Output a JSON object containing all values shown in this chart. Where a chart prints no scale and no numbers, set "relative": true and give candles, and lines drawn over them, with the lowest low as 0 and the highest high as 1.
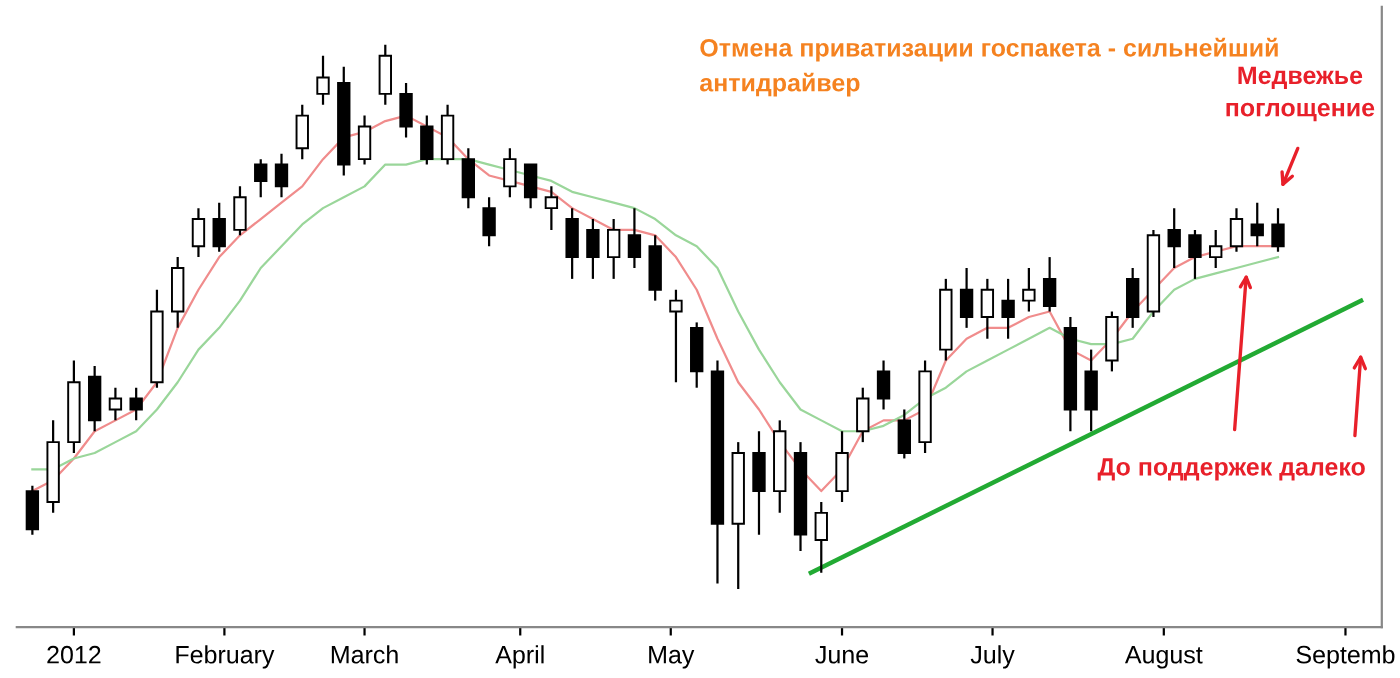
{
  "chart_data": {
    "type": "candlestick",
    "relative": true,
    "grid": false,
    "x": [
      "2012-01-03",
      "2012-01-07",
      "2012-01-11",
      "2012-01-15",
      "2012-01-19",
      "2012-01-23",
      "2012-01-27",
      "2012-01-31",
      "2012-02-04",
      "2012-02-08",
      "2012-02-12",
      "2012-02-16",
      "2012-02-20",
      "2012-02-24",
      "2012-02-28",
      "2012-03-03",
      "2012-03-07",
      "2012-03-11",
      "2012-03-15",
      "2012-03-19",
      "2012-03-23",
      "2012-03-27",
      "2012-03-31",
      "2012-04-04",
      "2012-04-08",
      "2012-04-12",
      "2012-04-16",
      "2012-04-20",
      "2012-04-24",
      "2012-04-28",
      "2012-05-02",
      "2012-05-06",
      "2012-05-10",
      "2012-05-14",
      "2012-05-18",
      "2012-05-22",
      "2012-05-26",
      "2012-05-30",
      "2012-06-03",
      "2012-06-07",
      "2012-06-11",
      "2012-06-15",
      "2012-06-19",
      "2012-06-23",
      "2012-06-27",
      "2012-07-01",
      "2012-07-05",
      "2012-07-09",
      "2012-07-13",
      "2012-07-17",
      "2012-07-21",
      "2012-07-25",
      "2012-07-29",
      "2012-08-02",
      "2012-08-06",
      "2012-08-10",
      "2012-08-14",
      "2012-08-18",
      "2012-08-22",
      "2012-08-26",
      "2012-08-30"
    ],
    "ohlc": [
      [
        0.18,
        0.19,
        0.1,
        0.11
      ],
      [
        0.16,
        0.31,
        0.14,
        0.27
      ],
      [
        0.27,
        0.42,
        0.25,
        0.38
      ],
      [
        0.39,
        0.41,
        0.29,
        0.31
      ],
      [
        0.33,
        0.37,
        0.31,
        0.35
      ],
      [
        0.35,
        0.37,
        0.31,
        0.33
      ],
      [
        0.38,
        0.55,
        0.37,
        0.51
      ],
      [
        0.51,
        0.61,
        0.48,
        0.59
      ],
      [
        0.63,
        0.7,
        0.61,
        0.68
      ],
      [
        0.68,
        0.71,
        0.62,
        0.63
      ],
      [
        0.66,
        0.74,
        0.65,
        0.72
      ],
      [
        0.78,
        0.79,
        0.72,
        0.75
      ],
      [
        0.78,
        0.8,
        0.72,
        0.74
      ],
      [
        0.81,
        0.89,
        0.79,
        0.87
      ],
      [
        0.91,
        0.98,
        0.89,
        0.94
      ],
      [
        0.93,
        0.96,
        0.76,
        0.78
      ],
      [
        0.79,
        0.87,
        0.78,
        0.85
      ],
      [
        0.91,
        1.0,
        0.89,
        0.98
      ],
      [
        0.91,
        0.93,
        0.83,
        0.85
      ],
      [
        0.85,
        0.87,
        0.78,
        0.79
      ],
      [
        0.79,
        0.89,
        0.78,
        0.87
      ],
      [
        0.79,
        0.81,
        0.7,
        0.72
      ],
      [
        0.7,
        0.72,
        0.63,
        0.65
      ],
      [
        0.74,
        0.81,
        0.72,
        0.79
      ],
      [
        0.78,
        0.78,
        0.7,
        0.72
      ],
      [
        0.7,
        0.74,
        0.66,
        0.72
      ],
      [
        0.68,
        0.7,
        0.57,
        0.61
      ],
      [
        0.66,
        0.68,
        0.57,
        0.61
      ],
      [
        0.61,
        0.68,
        0.57,
        0.66
      ],
      [
        0.65,
        0.7,
        0.59,
        0.61
      ],
      [
        0.63,
        0.65,
        0.53,
        0.55
      ],
      [
        0.51,
        0.55,
        0.38,
        0.53
      ],
      [
        0.48,
        0.49,
        0.37,
        0.4
      ],
      [
        0.4,
        0.42,
        0.01,
        0.12
      ],
      [
        0.12,
        0.27,
        0.0,
        0.25
      ],
      [
        0.25,
        0.29,
        0.1,
        0.18
      ],
      [
        0.18,
        0.31,
        0.14,
        0.29
      ],
      [
        0.25,
        0.27,
        0.07,
        0.1
      ],
      [
        0.09,
        0.16,
        0.03,
        0.14
      ],
      [
        0.18,
        0.29,
        0.16,
        0.25
      ],
      [
        0.29,
        0.37,
        0.27,
        0.35
      ],
      [
        0.4,
        0.42,
        0.33,
        0.35
      ],
      [
        0.31,
        0.33,
        0.24,
        0.25
      ],
      [
        0.27,
        0.42,
        0.25,
        0.4
      ],
      [
        0.44,
        0.57,
        0.42,
        0.55
      ],
      [
        0.55,
        0.59,
        0.48,
        0.5
      ],
      [
        0.5,
        0.57,
        0.46,
        0.55
      ],
      [
        0.53,
        0.57,
        0.46,
        0.5
      ],
      [
        0.53,
        0.59,
        0.51,
        0.55
      ],
      [
        0.57,
        0.61,
        0.51,
        0.52
      ],
      [
        0.48,
        0.5,
        0.29,
        0.33
      ],
      [
        0.4,
        0.44,
        0.29,
        0.33
      ],
      [
        0.42,
        0.51,
        0.4,
        0.5
      ],
      [
        0.57,
        0.59,
        0.48,
        0.5
      ],
      [
        0.51,
        0.66,
        0.5,
        0.65
      ],
      [
        0.66,
        0.7,
        0.59,
        0.63
      ],
      [
        0.65,
        0.66,
        0.57,
        0.61
      ],
      [
        0.61,
        0.66,
        0.59,
        0.63
      ],
      [
        0.63,
        0.7,
        0.62,
        0.68
      ],
      [
        0.67,
        0.71,
        0.63,
        0.65
      ],
      [
        0.67,
        0.7,
        0.62,
        0.63
      ]
    ],
    "series": [
      {
        "type": "line",
        "color": "#f08c8c",
        "values": [
          0.18,
          0.2,
          0.24,
          0.29,
          0.31,
          0.33,
          0.38,
          0.48,
          0.55,
          0.61,
          0.65,
          0.68,
          0.71,
          0.74,
          0.79,
          0.83,
          0.84,
          0.86,
          0.87,
          0.85,
          0.83,
          0.79,
          0.76,
          0.75,
          0.74,
          0.73,
          0.7,
          0.68,
          0.66,
          0.66,
          0.65,
          0.61,
          0.55,
          0.46,
          0.38,
          0.33,
          0.27,
          0.22,
          0.18,
          0.22,
          0.29,
          0.31,
          0.31,
          0.33,
          0.42,
          0.46,
          0.48,
          0.48,
          0.5,
          0.51,
          0.44,
          0.42,
          0.46,
          0.51,
          0.55,
          0.59,
          0.61,
          0.62,
          0.63,
          0.63,
          0.63
        ]
      },
      {
        "type": "line",
        "color": "#9ad69a",
        "values": [
          0.22,
          0.22,
          0.24,
          0.25,
          0.27,
          0.29,
          0.33,
          0.38,
          0.44,
          0.48,
          0.53,
          0.59,
          0.63,
          0.67,
          0.7,
          0.72,
          0.74,
          0.78,
          0.78,
          0.79,
          0.79,
          0.79,
          0.78,
          0.77,
          0.76,
          0.75,
          0.73,
          0.72,
          0.71,
          0.7,
          0.68,
          0.65,
          0.63,
          0.59,
          0.51,
          0.44,
          0.38,
          0.33,
          0.31,
          0.29,
          0.29,
          0.3,
          0.32,
          0.35,
          0.37,
          0.4,
          0.42,
          0.44,
          0.46,
          0.48,
          0.46,
          0.45,
          0.45,
          0.46,
          0.51,
          0.55,
          0.57,
          0.58,
          0.59,
          0.6,
          0.61
        ]
      },
      {
        "type": "line",
        "color": "#22aa33",
        "x": [
          "2012-06-01",
          "2012-09-15"
        ],
        "values": [
          0.03,
          0.53
        ]
      }
    ],
    "xlim": [
      "2011-12-31",
      "2012-09-19"
    ],
    "xticks": [
      {
        "value": "2012-01-11",
        "label": "2012"
      },
      {
        "value": "2012-02-09",
        "label": "February"
      },
      {
        "value": "2012-03-07",
        "label": "March"
      },
      {
        "value": "2012-04-06",
        "label": "April"
      },
      {
        "value": "2012-05-05",
        "label": "May"
      },
      {
        "value": "2012-06-07",
        "label": "June"
      },
      {
        "value": "2012-07-06",
        "label": "July"
      },
      {
        "value": "2012-08-08",
        "label": "August"
      },
      {
        "value": "2012-09-12",
        "label": "Septemb"
      }
    ],
    "annotations": [
      "Отмена приватизации госпакета - сильнейший антидрайвер",
      "Медвежье поглощение",
      {
        "text": "До поддержек далеко",
        "x": "2012-08-24",
        "y": 0.59
      }
    ]
  }
}
